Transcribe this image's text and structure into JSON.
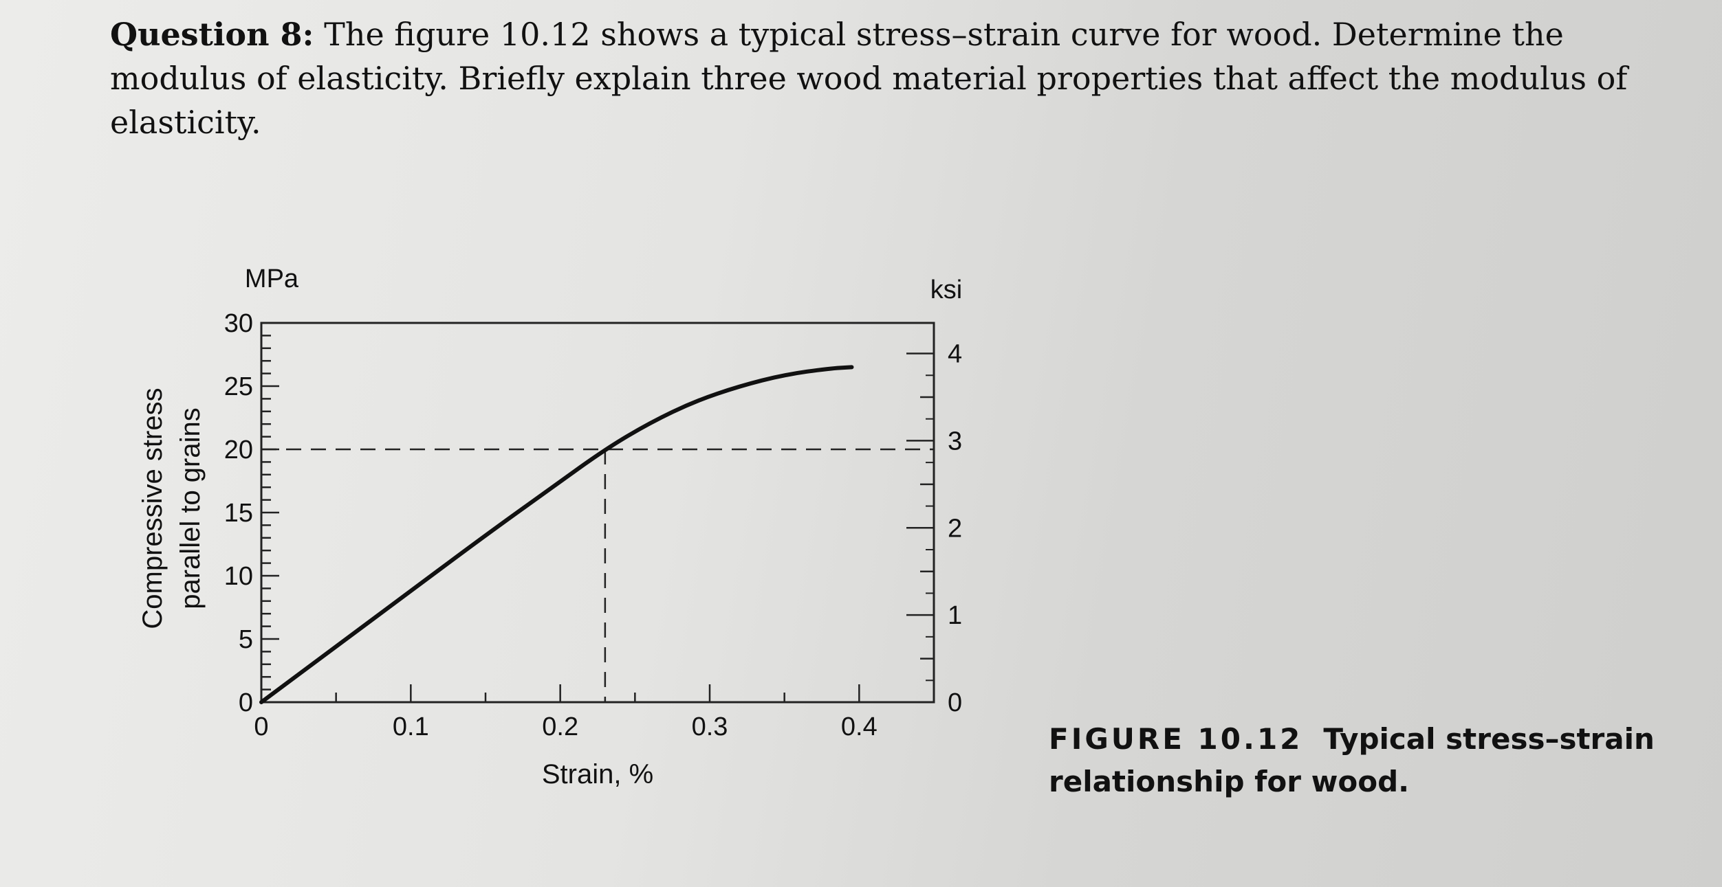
{
  "question": {
    "label": "Question 8:",
    "text": "The figure 10.12 shows a typical stress–strain curve for wood. Determine the modulus of elasticity. Briefly explain three wood material properties that affect the modulus of elasticity."
  },
  "caption": {
    "figure_label": "FIGURE 10.12",
    "text": "Typical stress–strain relationship for wood."
  },
  "chart_data": {
    "type": "line",
    "xlabel": "Strain, %",
    "ylabel_line1": "Compressive stress",
    "ylabel_line2": "parallel to grains",
    "left_unit": "MPa",
    "right_unit": "ksi",
    "xlim": [
      0,
      0.45
    ],
    "ylim": [
      0,
      30
    ],
    "x_ticks": [
      0,
      0.1,
      0.2,
      0.3,
      0.4
    ],
    "x_tick_labels": [
      "0",
      "0.1",
      "0.2",
      "0.3",
      "0.4"
    ],
    "y_ticks": [
      0,
      5,
      10,
      15,
      20,
      25,
      30
    ],
    "y_tick_labels": [
      "0",
      "5",
      "10",
      "15",
      "20",
      "25",
      "30"
    ],
    "right_ticks_ksi": [
      0,
      1,
      2,
      3,
      4
    ],
    "right_tick_labels": [
      "0",
      "1",
      "2",
      "3",
      "4"
    ],
    "series": [
      {
        "x": [
          0,
          0.05,
          0.1,
          0.15,
          0.19,
          0.23,
          0.26,
          0.29,
          0.32,
          0.35,
          0.38,
          0.395
        ],
        "y": [
          0,
          4.4,
          8.8,
          13.2,
          16.6,
          20,
          22.1,
          23.8,
          25,
          25.9,
          26.4,
          26.5
        ]
      }
    ],
    "reference_point": {
      "x": 0.23,
      "y": 20
    },
    "colors": {
      "curve": "#111111",
      "axes": "#222222"
    }
  }
}
